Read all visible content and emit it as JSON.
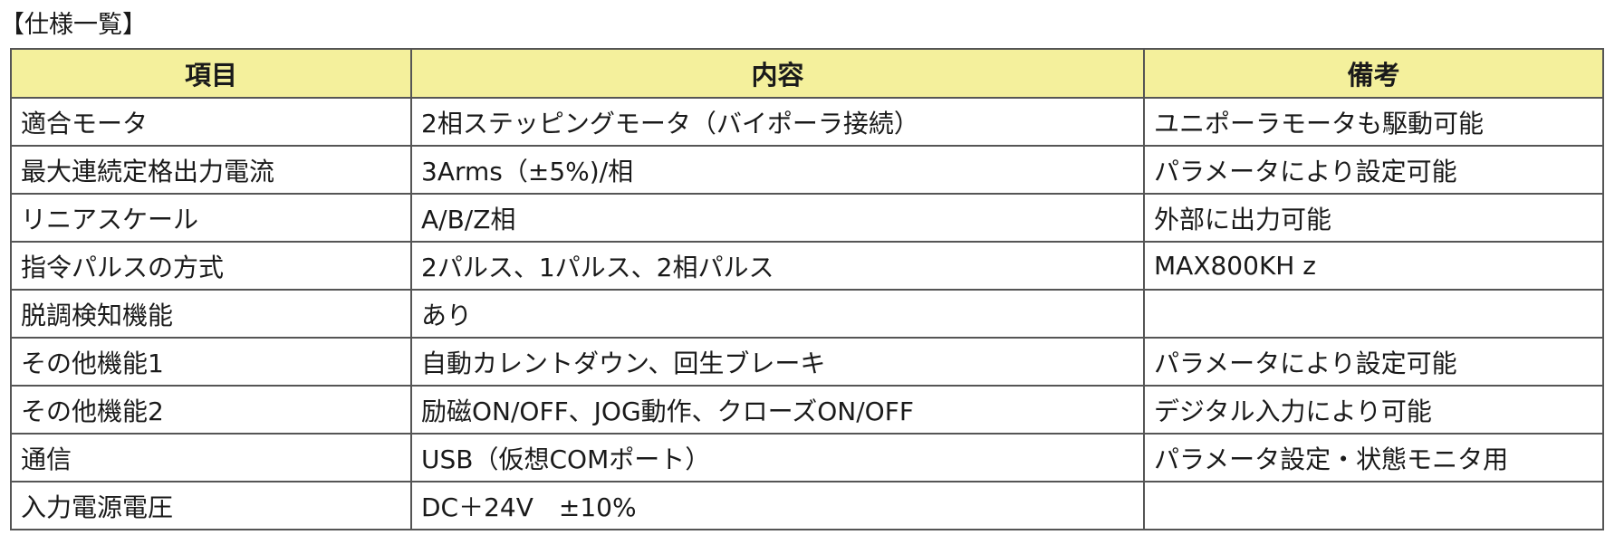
{
  "title": "【仕様一覧】",
  "table": {
    "headers": [
      "項目",
      "内容",
      "備考"
    ],
    "rows": [
      [
        "適合モータ",
        "2相ステッピングモータ（バイポーラ接続）",
        "ユニポーラモータも駆動可能"
      ],
      [
        "最大連続定格出力電流",
        "3Arms（±5%)/相",
        "パラメータにより設定可能"
      ],
      [
        "リニアスケール",
        "A/B/Z相",
        "外部に出力可能"
      ],
      [
        "指令パルスの方式",
        "2パルス、1パルス、2相パルス",
        "MAX800KH z"
      ],
      [
        "脱調検知機能",
        "あり",
        ""
      ],
      [
        "その他機能1",
        "自動カレントダウン、回生ブレーキ",
        "パラメータにより設定可能"
      ],
      [
        "その他機能2",
        "励磁ON/OFF、JOG動作、クローズON/OFF",
        "デジタル入力により可能"
      ],
      [
        "通信",
        "USB（仮想COMポート）",
        "パラメータ設定・状態モニタ用"
      ],
      [
        "入力電源電圧",
        "DC＋24V　±10%",
        ""
      ]
    ]
  },
  "colors": {
    "header_bg": "#f4f09c",
    "border": "#555555",
    "text": "#1a1a1a"
  }
}
